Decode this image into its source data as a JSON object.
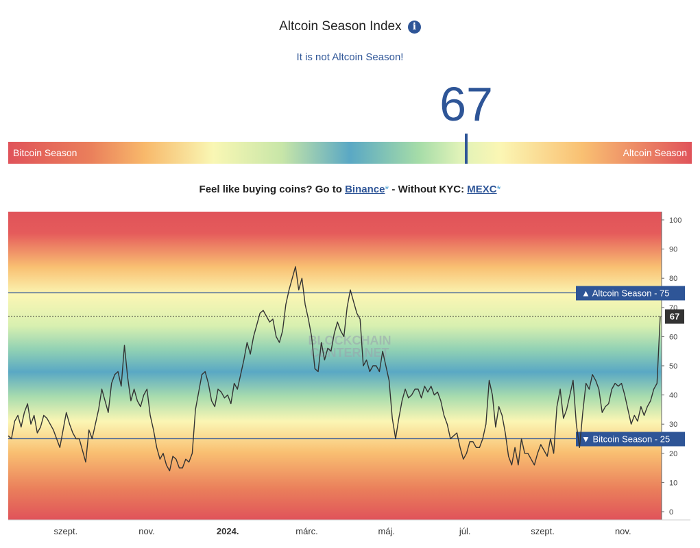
{
  "header": {
    "title": "Altcoin Season Index",
    "info_icon": "info-icon",
    "status": "It is not Altcoin Season!",
    "index_value": "67"
  },
  "gauge": {
    "left_label": "Bitcoin Season",
    "right_label": "Altcoin Season",
    "value": 67
  },
  "promo": {
    "prefix": "Feel like buying coins? Go to ",
    "link1": "Binance",
    "star": "*",
    "middle": " - Without KYC: ",
    "link2": "MEXC"
  },
  "colors": {
    "accent": "#2e5597",
    "bitcoin_red": "#e0535a",
    "line": "#333333"
  },
  "chart_data": {
    "type": "line",
    "ylim": [
      0,
      100
    ],
    "yticks": [
      0,
      10,
      20,
      30,
      40,
      50,
      60,
      70,
      80,
      90,
      100
    ],
    "xticks": [
      "szept.",
      "nov.",
      "2024.",
      "márc.",
      "máj.",
      "júl.",
      "szept.",
      "nov."
    ],
    "watermark": [
      "BLOCKCHAIN",
      "CENTER.NET"
    ],
    "thresholds": [
      {
        "label": "▲ Altcoin Season",
        "value": 75
      },
      {
        "label": "▼ Bitcoin Season",
        "value": 25
      }
    ],
    "current": {
      "value": 67,
      "label": "67"
    },
    "series": [
      {
        "values": [
          26,
          25,
          31,
          33,
          29,
          34,
          37,
          30,
          33,
          27,
          29,
          33,
          32,
          30,
          28,
          25,
          22,
          28,
          34,
          30,
          27,
          25,
          25,
          21,
          17,
          28,
          25,
          30,
          35,
          42,
          38,
          34,
          44,
          47,
          48,
          43,
          57,
          46,
          38,
          42,
          38,
          36,
          40,
          42,
          33,
          28,
          22,
          18,
          20,
          16,
          14,
          19,
          18,
          15,
          15,
          18,
          17,
          20,
          35,
          41,
          47,
          48,
          44,
          38,
          36,
          42,
          41,
          39,
          40,
          37,
          44,
          42,
          47,
          52,
          58,
          54,
          60,
          64,
          68,
          69,
          67,
          65,
          66,
          60,
          58,
          62,
          71,
          76,
          80,
          84,
          76,
          80,
          71,
          66,
          60,
          49,
          48,
          58,
          52,
          56,
          55,
          61,
          65,
          62,
          60,
          70,
          76,
          72,
          68,
          66,
          50,
          52,
          48,
          50,
          50,
          48,
          55,
          50,
          45,
          32,
          25,
          32,
          38,
          42,
          39,
          40,
          42,
          42,
          39,
          43,
          41,
          43,
          40,
          41,
          38,
          33,
          30,
          25,
          26,
          27,
          22,
          18,
          20,
          24,
          24,
          22,
          22,
          25,
          30,
          45,
          40,
          29,
          36,
          33,
          27,
          19,
          16,
          22,
          16,
          25,
          20,
          20,
          18,
          16,
          20,
          23,
          21,
          19,
          25,
          20,
          36,
          42,
          32,
          35,
          40,
          45,
          30,
          22,
          34,
          44,
          42,
          47,
          45,
          42,
          34,
          36,
          37,
          42,
          44,
          43,
          44,
          40,
          35,
          30,
          33,
          31,
          36,
          33,
          36,
          38,
          42,
          44,
          67
        ]
      }
    ]
  }
}
